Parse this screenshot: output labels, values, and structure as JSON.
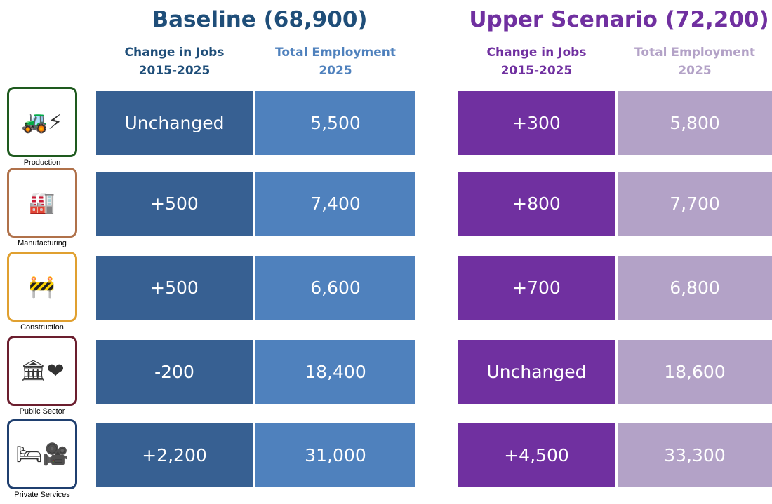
{
  "groups": [
    {
      "title": "Baseline (68,900)",
      "subheaders": [
        [
          "Change in Jobs",
          "2015-2025"
        ],
        [
          "Total Employment",
          "2025"
        ]
      ]
    },
    {
      "title": "Upper Scenario (72,200)",
      "subheaders": [
        [
          "Change in Jobs",
          "2015-2025"
        ],
        [
          "Total Employment",
          "2025"
        ]
      ]
    }
  ],
  "rows": [
    {
      "sector": "Production",
      "cells": [
        "Unchanged",
        "5,500",
        "+300",
        "5,800"
      ]
    },
    {
      "sector": "Manufacturing",
      "cells": [
        "+500",
        "7,400",
        "+800",
        "7,700"
      ]
    },
    {
      "sector": "Construction",
      "cells": [
        "+500",
        "6,600",
        "+700",
        "6,800"
      ]
    },
    {
      "sector": "Public Sector",
      "cells": [
        "-200",
        "18,400",
        "Unchanged",
        "18,600"
      ]
    },
    {
      "sector": "Private Services",
      "cells": [
        "+2,200",
        "31,000",
        "+4,500",
        "33,300"
      ]
    }
  ]
}
